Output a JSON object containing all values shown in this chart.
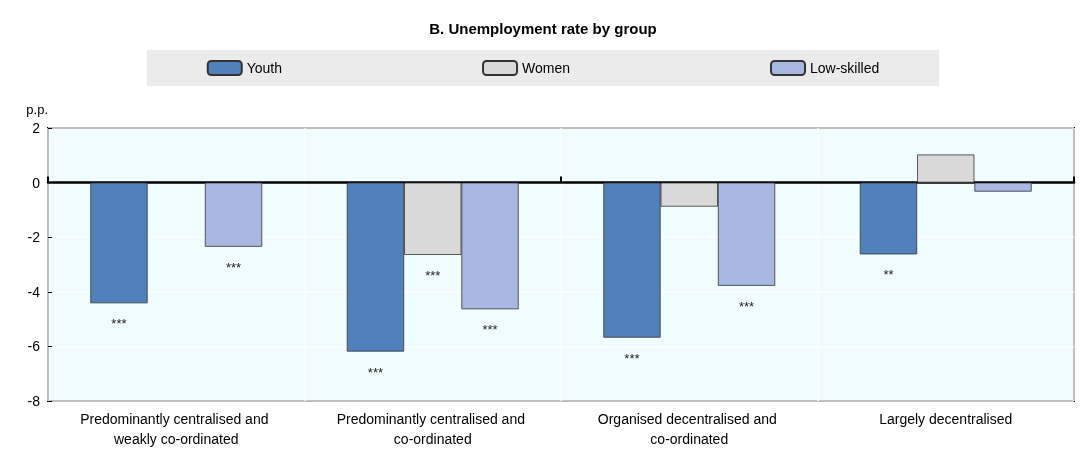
{
  "chart_data": {
    "type": "bar",
    "title": "B. Unemployment rate by group",
    "ylabel": "p.p.",
    "categories": [
      "Predominantly centralised and weakly co-ordinated",
      "Predominantly centralised and co-ordinated",
      "Organised decentralised and co-ordinated",
      "Largely decentralised"
    ],
    "series": [
      {
        "name": "Youth",
        "color": "#4f81bd",
        "values": [
          -4.42,
          -6.19,
          -5.68,
          -2.63
        ],
        "value_labels": [
          "***",
          "***",
          "***",
          "**"
        ]
      },
      {
        "name": "Women",
        "color": "#d9d9d9",
        "values": [
          null,
          -2.65,
          -0.88,
          1.03
        ],
        "value_labels": [
          null,
          "***",
          null,
          null
        ]
      },
      {
        "name": "Low-skilled",
        "color": "#a7b8e2",
        "values": [
          -2.35,
          -4.64,
          -3.78,
          -0.33
        ],
        "value_labels": [
          "***",
          "***",
          "***",
          null
        ]
      }
    ],
    "ylim": [
      -8,
      2
    ],
    "yticks": [
      -8,
      -6,
      -4,
      -2,
      0,
      2
    ],
    "grid": true,
    "legend": "top"
  }
}
